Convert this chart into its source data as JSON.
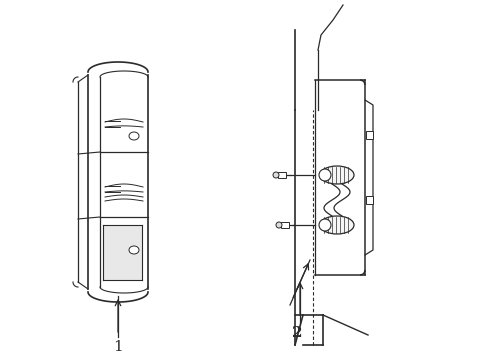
{
  "bg_color": "#ffffff",
  "line_color": "#2a2a2a",
  "label_1": "1",
  "label_2": "2",
  "fig_width": 4.9,
  "fig_height": 3.6,
  "dpi": 100
}
